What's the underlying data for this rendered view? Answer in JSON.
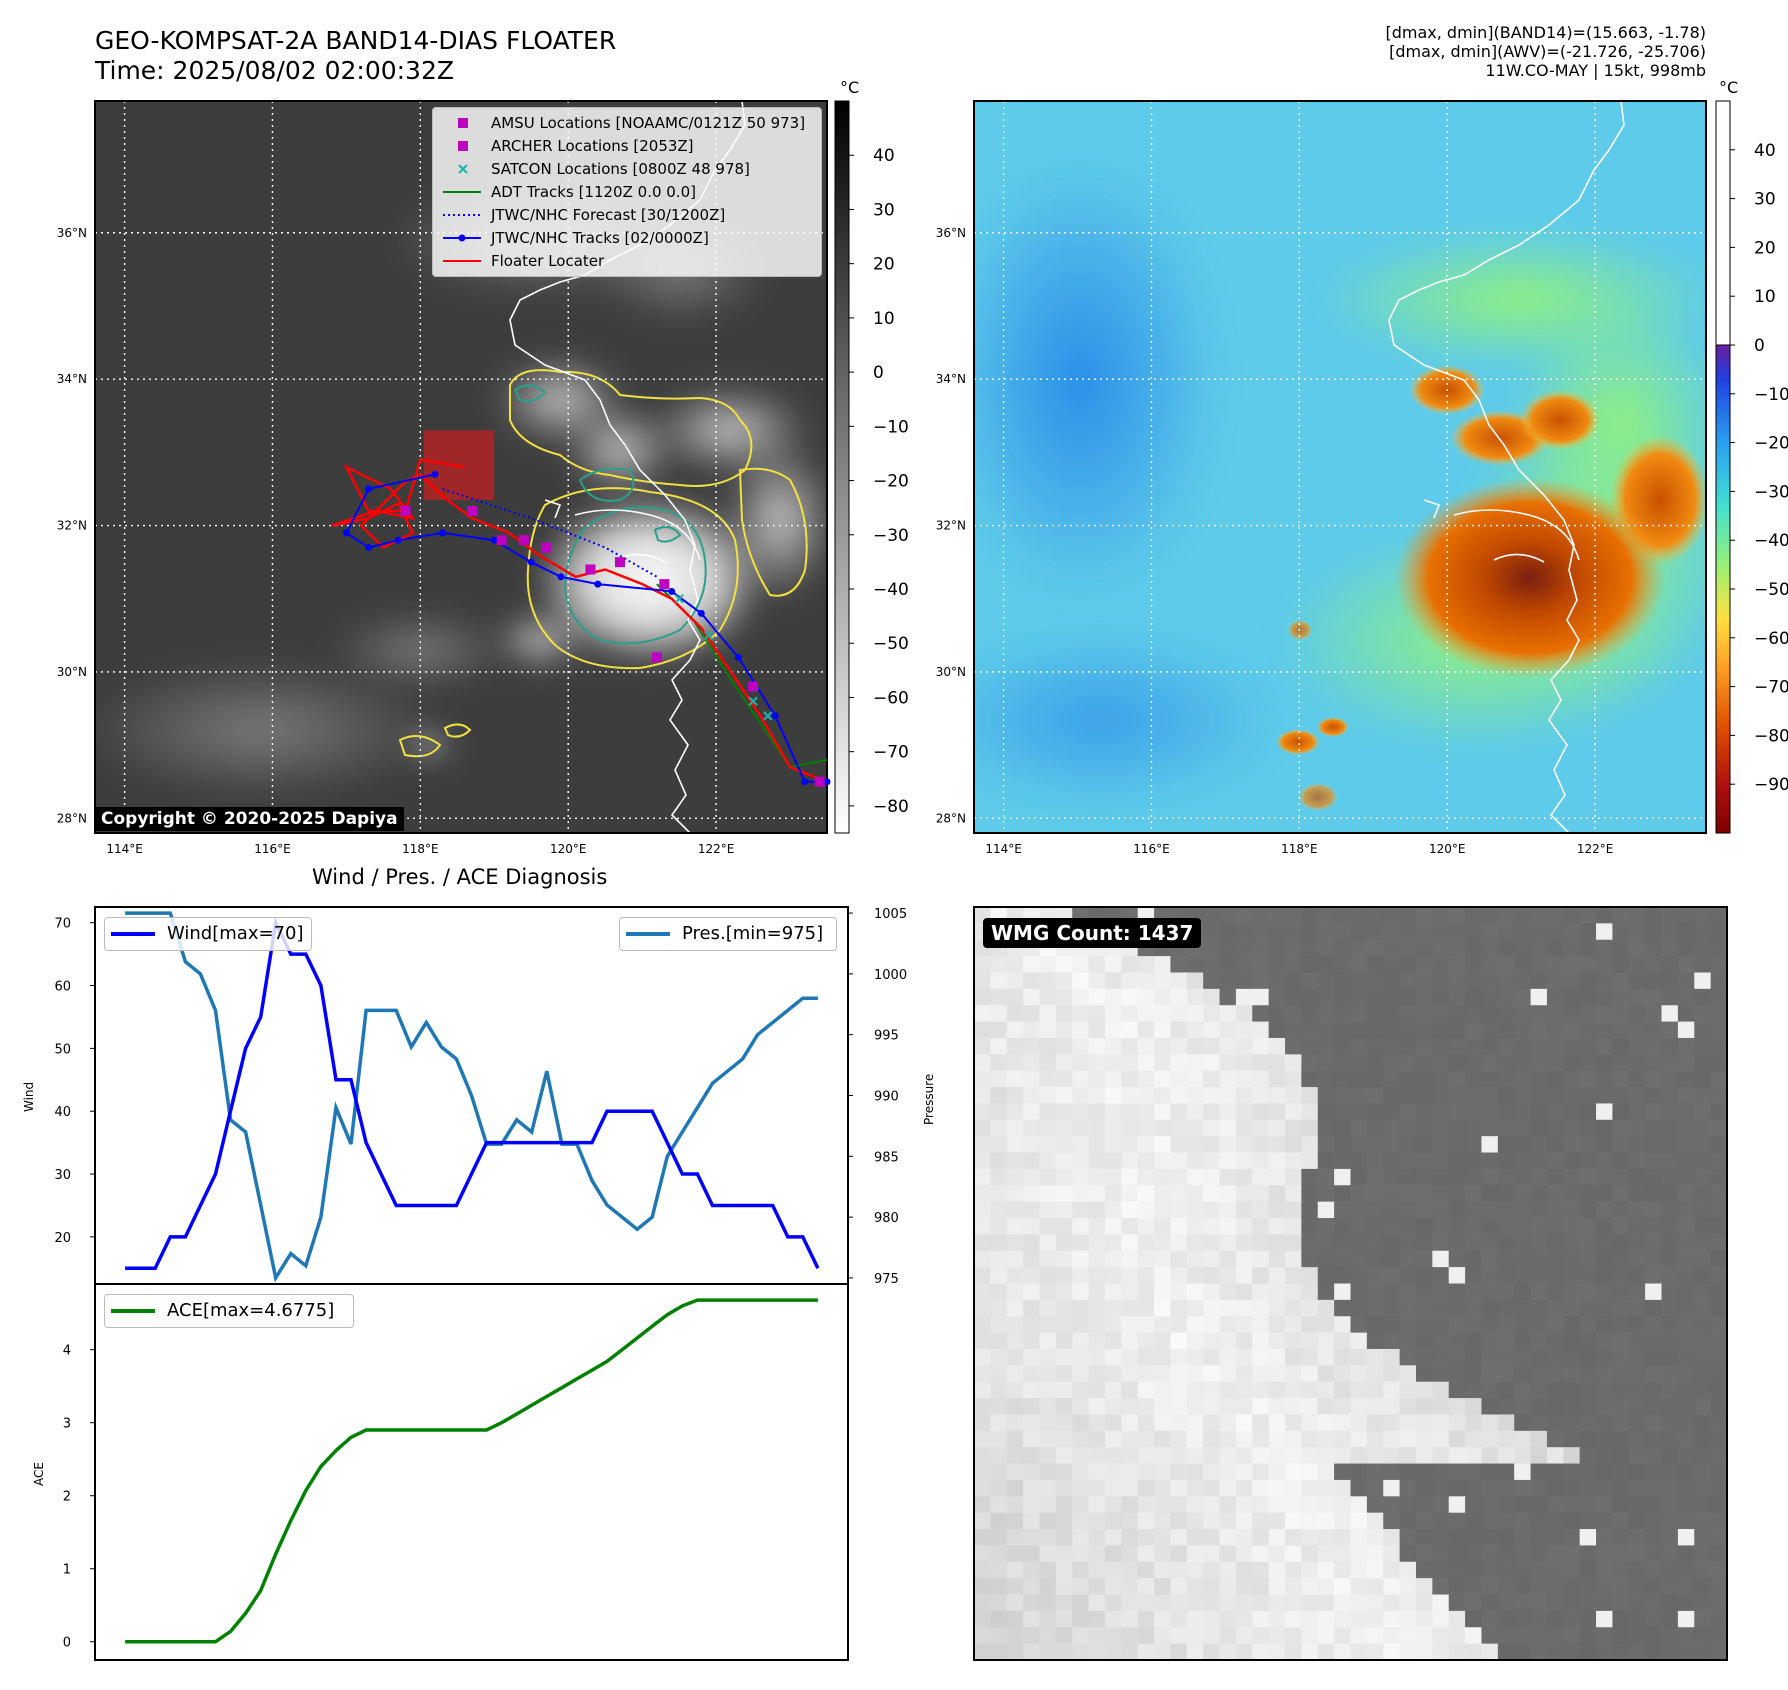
{
  "header": {
    "title_line1": "GEO-KOMPSAT-2A BAND14-DIAS FLOATER",
    "title_line2": "Time: 2025/08/02 02:00:32Z",
    "info_line1": "[dmax, dmin](BAND14)=(15.663, -1.78)",
    "info_line2": "[dmax, dmin](AWV)=(-21.726, -25.706)",
    "info_line3": "11W.CO-MAY | 15kt, 998mb"
  },
  "map": {
    "lon_ticks": [
      "114°E",
      "116°E",
      "118°E",
      "120°E",
      "122°E"
    ],
    "lat_ticks": [
      "28°N",
      "30°N",
      "32°N",
      "34°N",
      "36°N"
    ],
    "lon_values": [
      114,
      116,
      118,
      120,
      122
    ],
    "lat_values": [
      28,
      30,
      32,
      34,
      36
    ],
    "lon_range": [
      113.6,
      123.5
    ],
    "lat_range": [
      27.8,
      37.8
    ],
    "copyright": "Copyright © 2020-2025 Dapiya"
  },
  "ir_colorbar": {
    "unit": "°C",
    "ticks": [
      "40",
      "30",
      "20",
      "10",
      "0",
      "−10",
      "−20",
      "−30",
      "−40",
      "−50",
      "−60",
      "−70",
      "−80"
    ],
    "range": [
      -85,
      50
    ]
  },
  "awv_colorbar": {
    "unit": "°C",
    "ticks": [
      "40",
      "30",
      "20",
      "10",
      "0",
      "−10",
      "−20",
      "−30",
      "−40",
      "−50",
      "−60",
      "−70",
      "−80",
      "−90"
    ],
    "range": [
      -100,
      50
    ]
  },
  "legend": {
    "items": [
      {
        "label": "AMSU Locations [NOAAMC/0121Z 50 973]",
        "color": "#c000c0",
        "marker": "square"
      },
      {
        "label": "ARCHER Locations [2053Z]",
        "color": "#c000c0",
        "marker": "square"
      },
      {
        "label": "SATCON Locations [0800Z 48 978]",
        "color": "#20b2aa",
        "marker": "x"
      },
      {
        "label": "ADT Tracks [1120Z 0.0 0.0]",
        "color": "#008000",
        "marker": "line"
      },
      {
        "label": "JTWC/NHC Forecast [30/1200Z]",
        "color": "#0000ff",
        "marker": "dotted"
      },
      {
        "label": "JTWC/NHC Tracks [02/0000Z]",
        "color": "#0000ff",
        "marker": "line-dot"
      },
      {
        "label": "Floater Locater",
        "color": "#ff0000",
        "marker": "line"
      }
    ]
  },
  "tracks": {
    "jtwc_track": [
      [
        123.5,
        28.5
      ],
      [
        123.2,
        28.5
      ],
      [
        122.8,
        29.4
      ],
      [
        122.3,
        30.2
      ],
      [
        121.8,
        30.8
      ],
      [
        121.4,
        31.1
      ],
      [
        120.4,
        31.2
      ],
      [
        119.9,
        31.3
      ],
      [
        119.5,
        31.5
      ],
      [
        119.0,
        31.8
      ],
      [
        118.3,
        31.9
      ],
      [
        117.7,
        31.8
      ],
      [
        117.3,
        31.7
      ],
      [
        117.0,
        31.9
      ],
      [
        117.3,
        32.5
      ],
      [
        118.2,
        32.7
      ]
    ],
    "jtwc_forecast": [
      [
        118.3,
        32.5
      ],
      [
        119.5,
        32.1
      ],
      [
        120.5,
        31.7
      ],
      [
        121.2,
        31.3
      ]
    ],
    "adt_track": [
      [
        123.5,
        28.8
      ],
      [
        123.0,
        28.7
      ],
      [
        122.6,
        29.3
      ],
      [
        122.2,
        29.9
      ],
      [
        121.7,
        30.7
      ],
      [
        121.2,
        31.2
      ]
    ],
    "floater": [
      [
        123.5,
        28.5
      ],
      [
        123.0,
        28.7
      ],
      [
        122.6,
        29.4
      ],
      [
        122.2,
        30.0
      ],
      [
        121.8,
        30.6
      ],
      [
        121.4,
        31.0
      ],
      [
        121.0,
        31.2
      ],
      [
        120.5,
        31.4
      ],
      [
        120.1,
        31.3
      ],
      [
        119.6,
        31.6
      ],
      [
        119.2,
        31.9
      ],
      [
        118.7,
        32.1
      ],
      [
        118.3,
        32.4
      ],
      [
        118.0,
        32.7
      ],
      [
        117.8,
        32.6
      ],
      [
        117.5,
        32.3
      ],
      [
        117.2,
        32.0
      ],
      [
        117.5,
        31.7
      ],
      [
        117.9,
        31.9
      ],
      [
        117.7,
        32.3
      ],
      [
        117.3,
        32.1
      ],
      [
        116.8,
        32.0
      ],
      [
        117.4,
        32.2
      ],
      [
        117.9,
        32.1
      ],
      [
        117.6,
        32.5
      ],
      [
        117.0,
        32.8
      ],
      [
        117.3,
        32.2
      ],
      [
        117.8,
        32.2
      ],
      [
        118.0,
        32.9
      ],
      [
        118.6,
        32.8
      ]
    ],
    "amsu_points": [
      [
        118.7,
        32.2
      ],
      [
        119.4,
        31.8
      ],
      [
        119.7,
        31.7
      ],
      [
        120.3,
        31.4
      ],
      [
        120.7,
        31.5
      ],
      [
        121.3,
        31.2
      ],
      [
        121.2,
        30.2
      ],
      [
        122.5,
        29.8
      ],
      [
        123.4,
        28.5
      ],
      [
        117.8,
        32.2
      ],
      [
        119.1,
        31.8
      ]
    ],
    "satcon_points": [
      [
        122.7,
        29.4
      ],
      [
        122.5,
        29.6
      ],
      [
        121.5,
        31.0
      ],
      [
        121.9,
        30.5
      ]
    ],
    "floater_box": {
      "lon": [
        118.05,
        119.0
      ],
      "lat": [
        32.35,
        33.3
      ]
    }
  },
  "ts_title": "Wind / Pres. / ACE Diagnosis",
  "wind_chart": {
    "ylabel": "Wind",
    "ylabel_right": "Pressure",
    "wind_legend": "Wind[max=70]",
    "pres_legend": "Pres.[min=975]",
    "wind_ticks": [
      20,
      30,
      40,
      50,
      60,
      70
    ],
    "pres_ticks": [
      975,
      980,
      985,
      990,
      995,
      1000,
      1005
    ],
    "wind_ylim": [
      12.5,
      72.5
    ],
    "pres_ylim": [
      974.5,
      1005.5
    ],
    "xlim": [
      -2,
      48
    ],
    "wind": [
      15,
      15,
      15,
      20,
      20,
      25,
      30,
      40,
      50,
      55,
      70,
      65,
      65,
      60,
      45,
      45,
      35,
      30,
      25,
      25,
      25,
      25,
      25,
      30,
      35,
      35,
      35,
      35,
      35,
      35,
      35,
      35,
      40,
      40,
      40,
      40,
      35,
      30,
      30,
      25,
      25,
      25,
      25,
      25,
      20,
      20,
      15
    ],
    "pres": [
      1005,
      1005,
      1005,
      1005,
      1001,
      1000,
      997,
      988,
      987,
      981,
      975,
      977,
      976,
      980,
      989,
      986,
      997,
      997,
      997,
      994,
      996,
      994,
      993,
      990,
      986,
      986,
      988,
      987,
      992,
      986,
      986,
      983,
      981,
      980,
      979,
      980,
      985,
      987,
      989,
      991,
      992,
      993,
      995,
      996,
      997,
      998,
      998
    ]
  },
  "ace_chart": {
    "ylabel": "ACE",
    "legend": "ACE[max=4.6775]",
    "ticks": [
      0,
      1,
      2,
      3,
      4
    ],
    "ylim": [
      -0.25,
      4.9
    ],
    "xlim": [
      -2,
      48
    ],
    "ace": [
      0,
      0,
      0,
      0,
      0,
      0,
      0,
      0.14,
      0.39,
      0.7,
      1.2,
      1.66,
      2.07,
      2.4,
      2.62,
      2.8,
      2.9,
      2.9,
      2.9,
      2.9,
      2.9,
      2.9,
      2.9,
      2.9,
      2.9,
      3.0,
      3.12,
      3.24,
      3.36,
      3.48,
      3.6,
      3.72,
      3.84,
      4.0,
      4.16,
      4.32,
      4.48,
      4.6,
      4.68,
      4.68,
      4.68,
      4.68,
      4.68,
      4.68,
      4.68,
      4.68,
      4.68
    ]
  },
  "wmg": {
    "label": "WMG Count: 1437"
  },
  "colors": {
    "wind": "#0000ff",
    "pres": "#1f77b4",
    "ace": "#008000",
    "floater": "#ff0000",
    "track": "#0000ff",
    "amsu": "#c000c0",
    "satcon": "#20b2aa"
  }
}
